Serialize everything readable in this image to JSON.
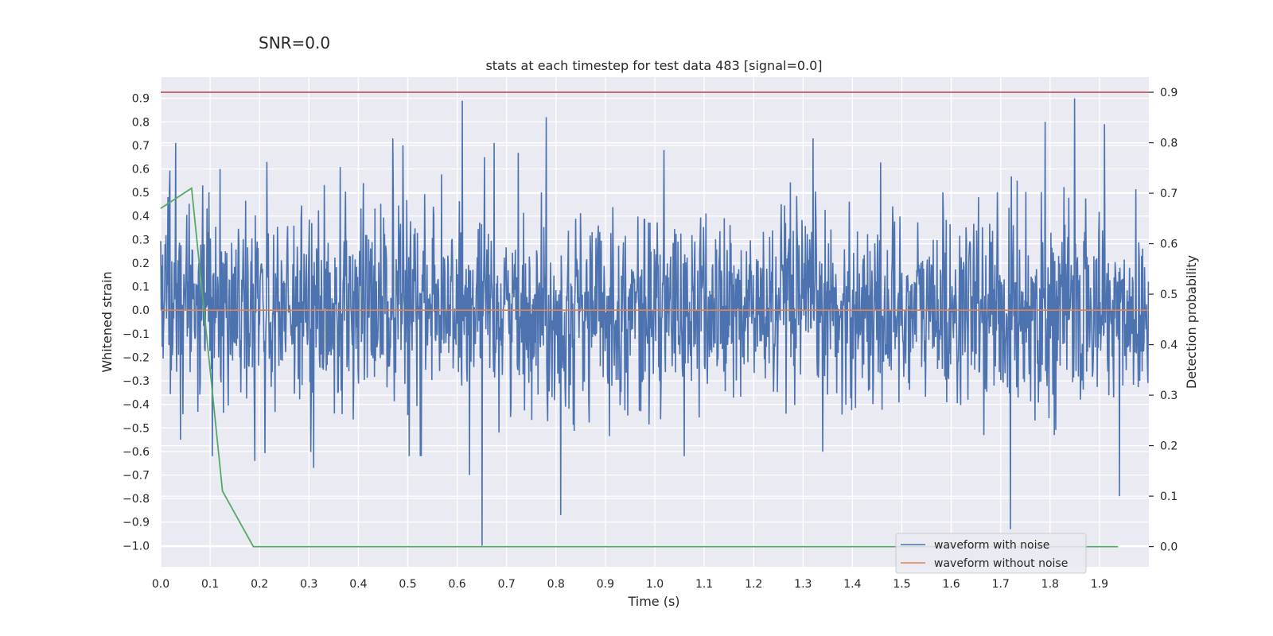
{
  "chart_data": {
    "type": "line",
    "suptitle": "SNR=0.0",
    "title": "stats at each timestep for test data 483 [signal=0.0]",
    "xlabel": "Time (s)",
    "ylabel": "Whitened strain",
    "y2label": "Detection probability",
    "xlim": [
      0.0,
      2.0
    ],
    "ylim": [
      -1.09,
      0.99
    ],
    "y2lim": [
      -0.04,
      0.93
    ],
    "x_ticks": [
      "0.0",
      "0.1",
      "0.2",
      "0.3",
      "0.4",
      "0.5",
      "0.6",
      "0.7",
      "0.8",
      "0.9",
      "1.0",
      "1.1",
      "1.2",
      "1.3",
      "1.4",
      "1.5",
      "1.6",
      "1.7",
      "1.8",
      "1.9"
    ],
    "y_ticks": [
      "0.9",
      "0.8",
      "0.7",
      "0.6",
      "0.5",
      "0.4",
      "0.3",
      "0.2",
      "0.1",
      "0.0",
      "−0.1",
      "−0.2",
      "−0.3",
      "−0.4",
      "−0.5",
      "−0.6",
      "−0.7",
      "−0.8",
      "−0.9",
      "−1.0"
    ],
    "y2_ticks": [
      "0.9",
      "0.8",
      "0.7",
      "0.6",
      "0.5",
      "0.4",
      "0.3",
      "0.2",
      "0.1",
      "0.0"
    ],
    "grid": true,
    "legend_position": "lower-right",
    "colors": {
      "plot_bg": "#eaeaf2",
      "grid": "#ffffff",
      "noise": "#4c72b0",
      "clean": "#dd8452",
      "prob": "#55a868",
      "threshold": "#c44e52",
      "text": "#262626"
    },
    "series": [
      {
        "name": "waveform with noise",
        "kind": "noise",
        "n_samples": 2048,
        "seed": 483,
        "sigma": 0.2,
        "spikes": [
          {
            "x": 0.015,
            "y": 0.48
          },
          {
            "x": 0.03,
            "y": 0.71
          },
          {
            "x": 0.04,
            "y": -0.55
          },
          {
            "x": 0.085,
            "y": 0.53
          },
          {
            "x": 0.12,
            "y": 0.6
          },
          {
            "x": 0.19,
            "y": -0.64
          },
          {
            "x": 0.215,
            "y": 0.63
          },
          {
            "x": 0.31,
            "y": -0.67
          },
          {
            "x": 0.47,
            "y": 0.73
          },
          {
            "x": 0.49,
            "y": 0.7
          },
          {
            "x": 0.61,
            "y": 0.89
          },
          {
            "x": 0.625,
            "y": -0.7
          },
          {
            "x": 0.65,
            "y": -1.0
          },
          {
            "x": 0.675,
            "y": 0.71
          },
          {
            "x": 0.78,
            "y": 0.82
          },
          {
            "x": 0.81,
            "y": -0.87
          },
          {
            "x": 1.32,
            "y": 0.73
          },
          {
            "x": 1.72,
            "y": -0.93
          },
          {
            "x": 1.79,
            "y": 0.8
          },
          {
            "x": 1.85,
            "y": 0.9
          },
          {
            "x": 1.91,
            "y": 0.79
          },
          {
            "x": 1.94,
            "y": -0.79
          }
        ]
      },
      {
        "name": "waveform without noise",
        "kind": "clean",
        "x": [
          0.0,
          2.0
        ],
        "y": [
          0.0,
          0.0
        ]
      },
      {
        "name": "detection probability",
        "kind": "prob",
        "axis": "right",
        "x": [
          0.0,
          0.0625,
          0.125,
          0.1875,
          0.25,
          0.3125,
          0.375,
          0.4375,
          0.5,
          0.5625,
          0.625,
          0.6875,
          0.75,
          0.8125,
          0.875,
          0.9375,
          1.0,
          1.0625,
          1.125,
          1.1875,
          1.25,
          1.3125,
          1.375,
          1.4375,
          1.5,
          1.5625,
          1.625,
          1.6875,
          1.75,
          1.8125,
          1.875,
          1.9375
        ],
        "y": [
          0.67,
          0.71,
          0.11,
          0.0,
          0.0,
          0.0,
          0.0,
          0.0,
          0.0,
          0.0,
          0.0,
          0.0,
          0.0,
          0.0,
          0.0,
          0.0,
          0.0,
          0.0,
          0.0,
          0.0,
          0.0,
          0.0,
          0.0,
          0.0,
          0.0,
          0.0,
          0.0,
          0.0,
          0.0,
          0.0,
          0.0,
          0.0
        ]
      },
      {
        "name": "threshold",
        "kind": "threshold",
        "axis": "right",
        "x": [
          0.0,
          2.0
        ],
        "y": [
          0.9,
          0.9
        ]
      }
    ],
    "legend": [
      {
        "label": "waveform with noise",
        "color_key": "noise"
      },
      {
        "label": "waveform without noise",
        "color_key": "clean"
      }
    ]
  }
}
